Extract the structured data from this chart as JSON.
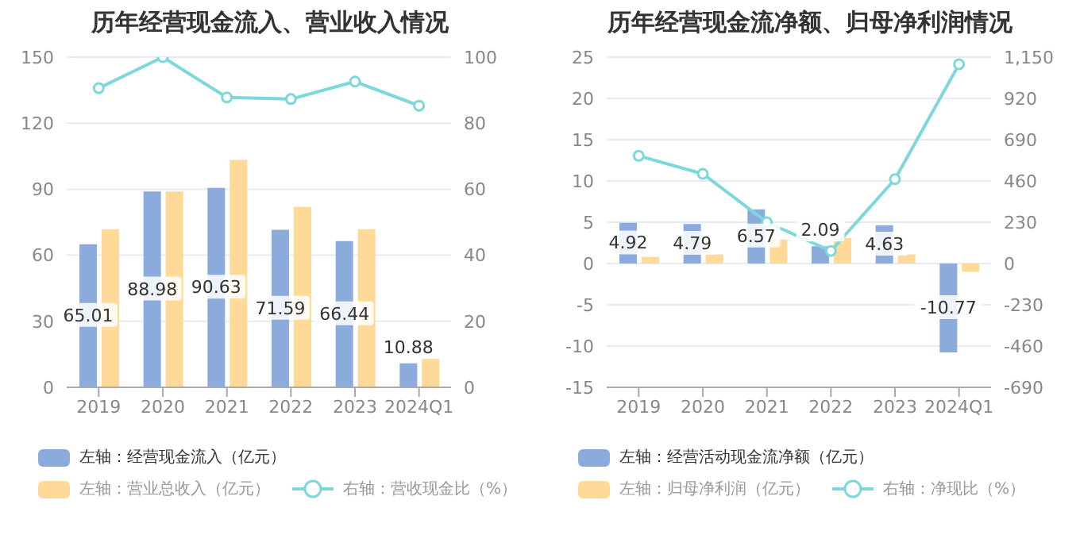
{
  "chart_data": [
    {
      "type": "bar",
      "title": "历年经营现金流入、营业收入情况",
      "categories": [
        "2019",
        "2020",
        "2021",
        "2022",
        "2023",
        "2024Q1"
      ],
      "series": [
        {
          "name": "左轴：经营现金流入（亿元）",
          "color": "#8aabdb",
          "values": [
            65.01,
            88.98,
            90.63,
            71.59,
            66.44,
            10.88
          ],
          "value_labels": [
            "65.01",
            "88.98",
            "90.63",
            "71.59",
            "66.44",
            "10.88"
          ]
        },
        {
          "name": "左轴：营业总收入（亿元）",
          "color": "#fed998",
          "values": [
            71.8,
            89,
            103.3,
            82,
            71.8,
            12.9
          ]
        },
        {
          "name": "右轴：营收现金比（%）",
          "type": "line",
          "axis": "y2",
          "color": "#7dd8dc",
          "values": [
            90.6,
            100,
            87.8,
            87.3,
            92.6,
            85.3
          ]
        }
      ],
      "ylim": [
        0,
        150
      ],
      "yticks": [
        0,
        30,
        60,
        90,
        120,
        150
      ],
      "y2lim": [
        0,
        100
      ],
      "y2ticks": [
        0,
        20,
        40,
        60,
        80,
        100
      ],
      "grid": "y",
      "legend": "bottom",
      "marker": "circle"
    },
    {
      "type": "bar",
      "title": "历年经营现金流净额、归母净利润情况",
      "categories": [
        "2019",
        "2020",
        "2021",
        "2022",
        "2023",
        "2024Q1"
      ],
      "series": [
        {
          "name": "左轴：经营活动现金流净额（亿元）",
          "color": "#8aabdb",
          "values": [
            4.92,
            4.79,
            6.57,
            2.09,
            4.63,
            -10.77
          ],
          "value_labels": [
            "4.92",
            "4.79",
            "6.57",
            "2.09",
            "4.63",
            "-10.77"
          ]
        },
        {
          "name": "左轴：归母净利润（亿元）",
          "color": "#fed998",
          "values": [
            0.8,
            1.1,
            2.9,
            3.1,
            1.1,
            -1.0
          ]
        },
        {
          "name": "右轴：净现比（%）",
          "type": "line",
          "axis": "y2",
          "color": "#7dd8dc",
          "values": [
            600,
            500,
            230,
            70,
            470,
            1110
          ]
        }
      ],
      "ylim": [
        -15,
        25
      ],
      "yticks": [
        -15,
        -10,
        -5,
        0,
        5,
        10,
        15,
        20,
        25
      ],
      "y2lim": [
        -690,
        1150
      ],
      "y2ticks": [
        -690,
        -460,
        -230,
        0,
        230,
        460,
        690,
        920,
        {
          "value": 1150,
          "label": "1,150"
        }
      ],
      "grid": "y",
      "legend": "bottom",
      "marker": "circle"
    }
  ]
}
